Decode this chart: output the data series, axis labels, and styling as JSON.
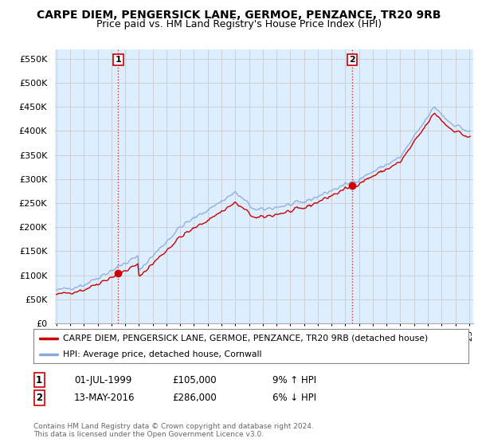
{
  "title": "CARPE DIEM, PENGERSICK LANE, GERMOE, PENZANCE, TR20 9RB",
  "subtitle": "Price paid vs. HM Land Registry's House Price Index (HPI)",
  "ylim": [
    0,
    570000
  ],
  "yticks": [
    0,
    50000,
    100000,
    150000,
    200000,
    250000,
    300000,
    350000,
    400000,
    450000,
    500000,
    550000
  ],
  "ytick_labels": [
    "£0",
    "£50K",
    "£100K",
    "£150K",
    "£200K",
    "£250K",
    "£300K",
    "£350K",
    "£400K",
    "£450K",
    "£500K",
    "£550K"
  ],
  "sale1_date_idx": 54,
  "sale1_price": 105000,
  "sale1_label": "1",
  "sale2_date_idx": 258,
  "sale2_price": 286000,
  "sale2_label": "2",
  "property_color": "#cc0000",
  "hpi_color": "#88aadd",
  "chart_bg": "#ddeeff",
  "legend_property": "CARPE DIEM, PENGERSICK LANE, GERMOE, PENZANCE, TR20 9RB (detached house)",
  "legend_hpi": "HPI: Average price, detached house, Cornwall",
  "table_row1": [
    "1",
    "01-JUL-1999",
    "£105,000",
    "9% ↑ HPI"
  ],
  "table_row2": [
    "2",
    "13-MAY-2016",
    "£286,000",
    "6% ↓ HPI"
  ],
  "footnote": "Contains HM Land Registry data © Crown copyright and database right 2024.\nThis data is licensed under the Open Government Licence v3.0.",
  "background_color": "#ffffff",
  "grid_color": "#cccccc",
  "title_fontsize": 10,
  "subtitle_fontsize": 9
}
